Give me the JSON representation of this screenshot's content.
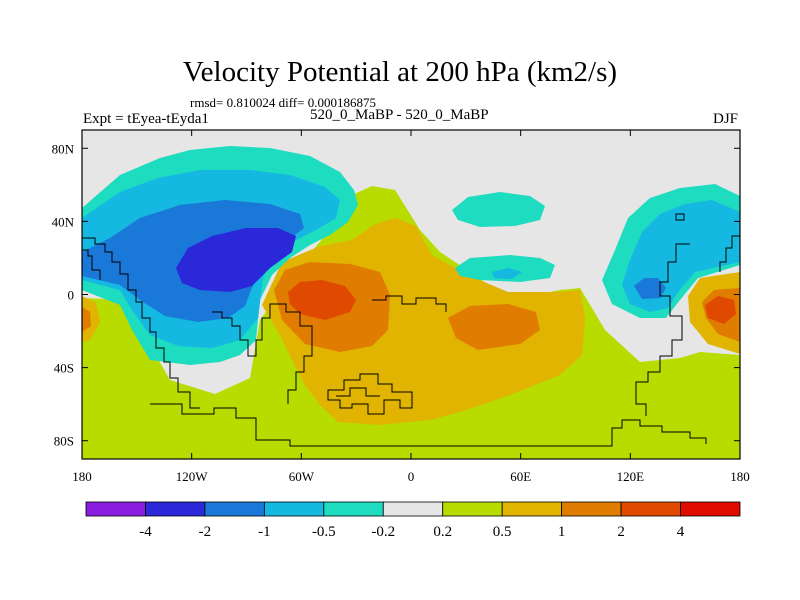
{
  "title": "Velocity Potential at 200 hPa (km2/s)",
  "subtitle": "rmsd= 0.810024 diff= 0.000186875",
  "left_label": "Expt = tEyea-tEyda1",
  "center_label": "520_0_MaBP - 520_0_MaBP",
  "right_label": "DJF",
  "chart_data": {
    "type": "heatmap",
    "projection": "cylindrical-equidistant",
    "xlim": [
      -180,
      180
    ],
    "ylim": [
      -90,
      90
    ],
    "x_ticks": [
      {
        "value": -180,
        "label": "180"
      },
      {
        "value": -120,
        "label": "120W"
      },
      {
        "value": -60,
        "label": "60W"
      },
      {
        "value": 0,
        "label": "0"
      },
      {
        "value": 60,
        "label": "60E"
      },
      {
        "value": 120,
        "label": "120E"
      },
      {
        "value": 180,
        "label": "180"
      }
    ],
    "y_ticks": [
      {
        "value": 80,
        "label": "80N"
      },
      {
        "value": 40,
        "label": "40N"
      },
      {
        "value": 0,
        "label": "0"
      },
      {
        "value": -40,
        "label": "40S"
      },
      {
        "value": -80,
        "label": "80S"
      }
    ],
    "colorbar": {
      "levels": [
        "-4",
        "-2",
        "-1",
        "-0.5",
        "-0.2",
        "0.2",
        "0.5",
        "1",
        "2",
        "4"
      ],
      "colors": [
        "#8a1ee0",
        "#2a28d8",
        "#1a78d8",
        "#14b8e0",
        "#1edcc0",
        "#e6e6e6",
        "#b8dc00",
        "#e0b400",
        "#e07c00",
        "#e04a00",
        "#e00c00"
      ]
    },
    "features": [
      {
        "name": "negative center NE Pacific",
        "lon": -130,
        "lat": 15,
        "min_level": -4,
        "range": "-4 to -2"
      },
      {
        "name": "negative center W Pacific",
        "lon": 128,
        "lat": 2,
        "range": "-2 to -1"
      },
      {
        "name": "negative band N Pacific high latitudes",
        "lon": -120,
        "lat": 55,
        "range": "-0.5 to -0.2"
      },
      {
        "name": "negative patch N Atlantic",
        "lon": 45,
        "lat": 45,
        "range": "-0.5 to -0.2"
      },
      {
        "name": "positive center tropical S America",
        "lon": -40,
        "lat": -2,
        "range": "2 to 4"
      },
      {
        "name": "positive center Indian Ocean",
        "lon": 50,
        "lat": -18,
        "range": "1 to 2"
      },
      {
        "name": "positive center E Pacific",
        "lon": 173,
        "lat": -5,
        "range": "1 to 2"
      },
      {
        "name": "positive region Southern Hemisphere",
        "lon": 0,
        "lat": -55,
        "range": "0.2 to 1"
      }
    ]
  }
}
